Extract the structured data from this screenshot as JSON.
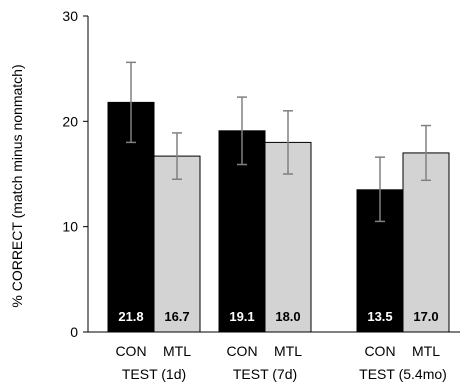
{
  "chart_data": {
    "type": "bar",
    "ylabel": "% CORRECT (match minus nonmatch)",
    "ylim": [
      0,
      30
    ],
    "yticks": [
      0,
      10,
      20,
      30
    ],
    "grid": false,
    "legend": "none",
    "groups": [
      {
        "label": "TEST (1d)",
        "bars": [
          {
            "name": "CON",
            "value": 21.8,
            "value_label": "21.8",
            "err_low": 18.0,
            "err_high": 25.6
          },
          {
            "name": "MTL",
            "value": 16.7,
            "value_label": "16.7",
            "err_low": 14.5,
            "err_high": 18.9
          }
        ]
      },
      {
        "label": "TEST (7d)",
        "bars": [
          {
            "name": "CON",
            "value": 19.1,
            "value_label": "19.1",
            "err_low": 15.9,
            "err_high": 22.3
          },
          {
            "name": "MTL",
            "value": 18.0,
            "value_label": "18.0",
            "err_low": 15.0,
            "err_high": 21.0
          }
        ]
      },
      {
        "label": "TEST (5.4mo)",
        "bars": [
          {
            "name": "CON",
            "value": 13.5,
            "value_label": "13.5",
            "err_low": 10.5,
            "err_high": 16.6
          },
          {
            "name": "MTL",
            "value": 17.0,
            "value_label": "17.0",
            "err_low": 14.4,
            "err_high": 19.6
          }
        ]
      }
    ],
    "colors": {
      "CON": "#000000",
      "MTL": "#d3d3d3",
      "axis": "#000000",
      "error_bar": "#808080"
    }
  }
}
